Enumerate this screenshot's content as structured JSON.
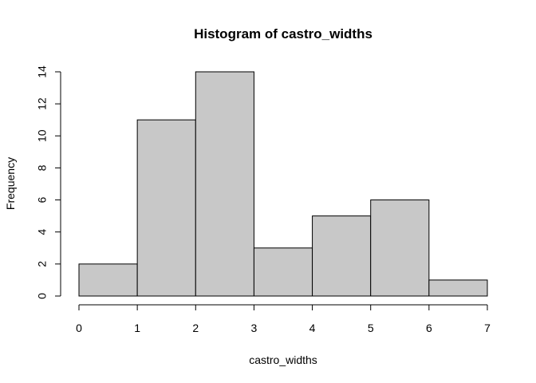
{
  "chart_data": {
    "type": "bar",
    "title": "Histogram of castro_widths",
    "xlabel": "castro_widths",
    "ylabel": "Frequency",
    "bins": [
      {
        "start": 0,
        "end": 1,
        "count": 2
      },
      {
        "start": 1,
        "end": 2,
        "count": 11
      },
      {
        "start": 2,
        "end": 3,
        "count": 14
      },
      {
        "start": 3,
        "end": 4,
        "count": 3
      },
      {
        "start": 4,
        "end": 5,
        "count": 5
      },
      {
        "start": 5,
        "end": 6,
        "count": 6
      },
      {
        "start": 6,
        "end": 7,
        "count": 1
      }
    ],
    "xlim": [
      0,
      7
    ],
    "ylim": [
      0,
      14
    ],
    "x_ticks": [
      "0",
      "1",
      "2",
      "3",
      "4",
      "5",
      "6",
      "7"
    ],
    "y_ticks": [
      "0",
      "2",
      "4",
      "6",
      "8",
      "10",
      "12",
      "14"
    ],
    "bar_fill": "#c8c8c8",
    "bar_stroke": "#000000",
    "grid": false
  }
}
